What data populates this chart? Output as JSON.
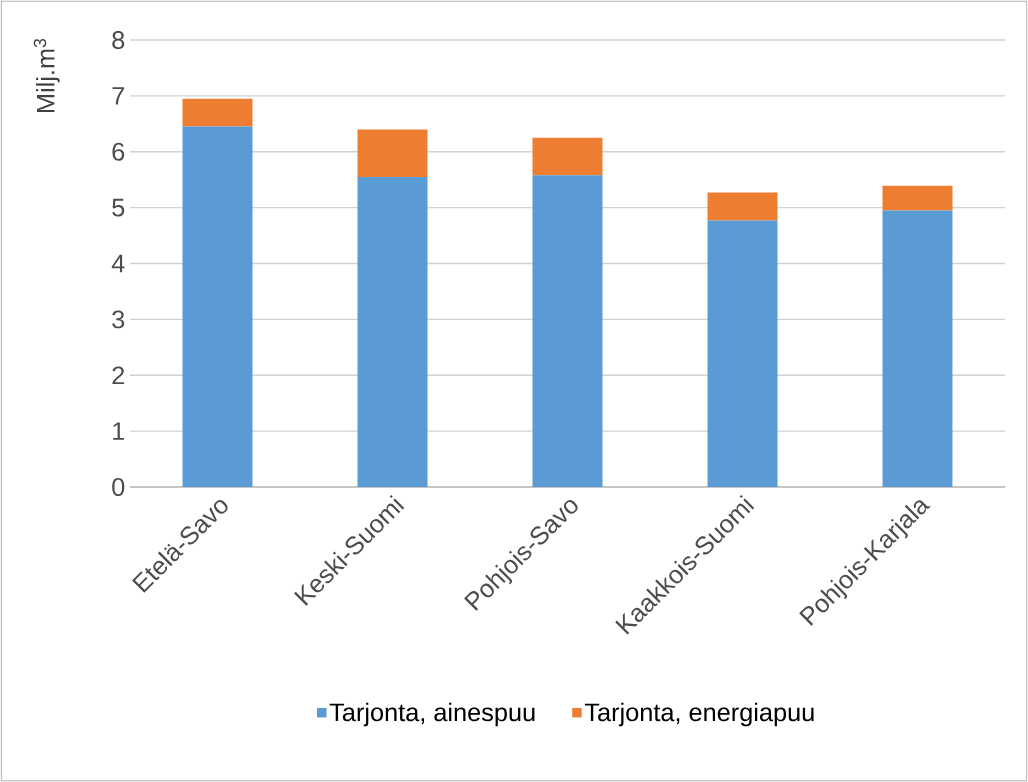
{
  "chart_data": {
    "type": "bar",
    "stacked": true,
    "ylabel": "Milj.m$^{3}$",
    "categories": [
      "Etelä-Savo",
      "Keski-Suomi",
      "Pohjois-Savo",
      "Kaakkois-Suomi",
      "Pohjois-Karjala"
    ],
    "series": [
      {
        "name": "Tarjonta, ainespuu",
        "color": "#5b9bd5",
        "values": [
          6.45,
          5.55,
          5.58,
          4.77,
          4.95
        ]
      },
      {
        "name": "Tarjonta, energiapuu",
        "color": "#ed7d31",
        "values": [
          0.5,
          0.85,
          0.67,
          0.5,
          0.44
        ]
      }
    ],
    "ylim": [
      0,
      8
    ],
    "yticks": [
      0,
      1,
      2,
      3,
      4,
      5,
      6,
      7,
      8
    ],
    "grid": "y",
    "legend": "bottom"
  }
}
